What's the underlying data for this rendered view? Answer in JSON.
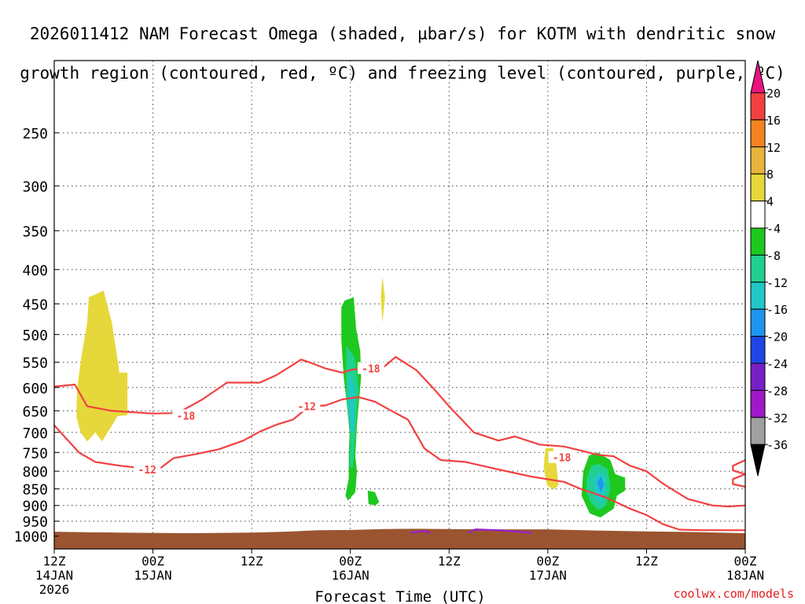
{
  "title_line1": "2026011412 NAM Forecast Omega (shaded, µbar/s) for KOTM with dendritic snow",
  "title_line2": "growth region (contoured, red, ºC) and freezing level (contoured, purple, ºC)",
  "credit": "coolwx.com/models",
  "chart_data": {
    "type": "contour-timeseries",
    "title": "2026011412 NAM Forecast Omega (shaded, µbar/s) for KOTM with dendritic snow growth region (contoured, red, ºC) and freezing level (contoured, purple, ºC)",
    "xlabel": "Forecast Time (UTC)",
    "ylabel": "",
    "x_range_hours": [
      0,
      84
    ],
    "y_range_hpa": [
      195,
      1045
    ],
    "x_ticks": [
      {
        "hour": 0,
        "line1": "12Z",
        "line2": "14JAN",
        "line3": "2026"
      },
      {
        "hour": 12,
        "line1": "00Z",
        "line2": "15JAN",
        "line3": ""
      },
      {
        "hour": 24,
        "line1": "12Z",
        "line2": "",
        "line3": ""
      },
      {
        "hour": 36,
        "line1": "00Z",
        "line2": "16JAN",
        "line3": ""
      },
      {
        "hour": 48,
        "line1": "12Z",
        "line2": "",
        "line3": ""
      },
      {
        "hour": 60,
        "line1": "00Z",
        "line2": "17JAN",
        "line3": ""
      },
      {
        "hour": 72,
        "line1": "12Z",
        "line2": "",
        "line3": ""
      },
      {
        "hour": 84,
        "line1": "00Z",
        "line2": "18JAN",
        "line3": ""
      }
    ],
    "y_ticks": [
      250,
      300,
      350,
      400,
      450,
      500,
      550,
      600,
      650,
      700,
      750,
      800,
      850,
      900,
      950,
      1000
    ],
    "colorbar": {
      "labels": [
        "20",
        "16",
        "12",
        "8",
        "4",
        "-4",
        "-8",
        "-12",
        "-16",
        "-20",
        "-24",
        "-28",
        "-32",
        "-36"
      ],
      "colors": [
        "#e8157f",
        "#f24040",
        "#f58320",
        "#e8b43a",
        "#e6d83a",
        "#ffffff",
        "#1ec81e",
        "#20d090",
        "#20c8c8",
        "#1e96f0",
        "#1e46e6",
        "#7820c8",
        "#a018c8",
        "#a0a0a0",
        "#000000"
      ]
    },
    "contours": [
      {
        "label": "-18",
        "color": "#f24040",
        "points": [
          [
            0,
            598
          ],
          [
            2.5,
            594
          ],
          [
            4,
            640
          ],
          [
            7,
            650
          ],
          [
            12,
            656
          ],
          [
            15,
            655
          ],
          [
            18,
            625
          ],
          [
            21,
            590
          ],
          [
            25,
            590
          ],
          [
            27,
            575
          ],
          [
            29,
            555
          ],
          [
            30,
            545
          ],
          [
            31,
            550
          ],
          [
            33,
            562
          ],
          [
            35,
            570
          ],
          [
            36,
            565
          ],
          [
            38,
            560
          ],
          [
            39,
            570
          ],
          [
            40,
            560
          ],
          [
            41.5,
            540
          ],
          [
            44,
            565
          ],
          [
            46,
            600
          ],
          [
            48,
            640
          ],
          [
            51,
            700
          ],
          [
            54,
            720
          ],
          [
            56,
            710
          ],
          [
            59,
            730
          ],
          [
            62,
            735
          ],
          [
            64,
            745
          ],
          [
            66,
            756
          ],
          [
            68,
            760
          ],
          [
            70,
            785
          ],
          [
            72,
            800
          ],
          [
            74,
            835
          ],
          [
            77,
            880
          ],
          [
            80,
            900
          ],
          [
            82,
            903
          ],
          [
            84,
            900
          ]
        ],
        "labels": [
          {
            "text": "-18",
            "x": 16,
            "y": 661
          },
          {
            "text": "-18",
            "x": 38.5,
            "y": 562
          },
          {
            "text": "-18",
            "x": 61.7,
            "y": 763
          }
        ]
      },
      {
        "label": "-12",
        "color": "#f24040",
        "points": [
          [
            0,
            683
          ],
          [
            1,
            705
          ],
          [
            3,
            750
          ],
          [
            5,
            775
          ],
          [
            8,
            785
          ],
          [
            10,
            790
          ],
          [
            13,
            790
          ],
          [
            14.5,
            765
          ],
          [
            17,
            755
          ],
          [
            20,
            742
          ],
          [
            23,
            720
          ],
          [
            25,
            698
          ],
          [
            27,
            682
          ],
          [
            29,
            670
          ],
          [
            30,
            655
          ],
          [
            31,
            640
          ],
          [
            33,
            638
          ],
          [
            35,
            625
          ],
          [
            37,
            620
          ],
          [
            39,
            630
          ],
          [
            41,
            650
          ],
          [
            43,
            670
          ],
          [
            45,
            740
          ],
          [
            47,
            770
          ],
          [
            50,
            775
          ],
          [
            54,
            795
          ],
          [
            58,
            815
          ],
          [
            62,
            830
          ],
          [
            64,
            850
          ],
          [
            67,
            875
          ],
          [
            70,
            910
          ],
          [
            72,
            930
          ],
          [
            74,
            960
          ],
          [
            76,
            978
          ],
          [
            79,
            980
          ],
          [
            84,
            980
          ]
        ],
        "labels": [
          {
            "text": "-12",
            "x": 11.3,
            "y": 795
          },
          {
            "text": "-12",
            "x": 30.7,
            "y": 640
          }
        ]
      },
      {
        "label": "-12",
        "color": "#f24040",
        "points": [
          [
            84,
            770
          ],
          [
            82.5,
            785
          ],
          [
            82.5,
            798
          ],
          [
            84,
            808
          ],
          [
            82.5,
            822
          ],
          [
            82.5,
            836
          ],
          [
            84,
            844
          ]
        ],
        "labels": []
      },
      {
        "label": "0",
        "color": "#9a1fcc",
        "points": [
          [
            43.3,
            989
          ],
          [
            44.2,
            985
          ],
          [
            45,
            983
          ],
          [
            45.7,
            989
          ]
        ],
        "labels": []
      },
      {
        "label": "0",
        "color": "#9a1fcc",
        "points": [
          [
            50.3,
            989
          ],
          [
            51.2,
            977
          ],
          [
            54,
            980
          ],
          [
            56.5,
            985
          ],
          [
            58,
            989
          ]
        ],
        "labels": []
      }
    ],
    "omega_regions": [
      {
        "name": "positive-4-8-early",
        "value_range": "4 to 8",
        "color": "#e6d83a",
        "points": [
          [
            2.7,
            645
          ],
          [
            2.8,
            600
          ],
          [
            3.3,
            540
          ],
          [
            4,
            480
          ],
          [
            4.2,
            440
          ],
          [
            6,
            430
          ],
          [
            7,
            480
          ],
          [
            7.8,
            555
          ],
          [
            7.9,
            570
          ],
          [
            8.9,
            570
          ],
          [
            8.9,
            660
          ],
          [
            7.7,
            662
          ],
          [
            6.5,
            700
          ],
          [
            5.8,
            722
          ],
          [
            5,
            700
          ],
          [
            4,
            722
          ],
          [
            3.2,
            700
          ],
          [
            2.7,
            665
          ]
        ]
      },
      {
        "name": "positive-4-8-sliver",
        "value_range": "4 to 8",
        "color": "#e6d83a",
        "points": [
          [
            39.9,
            410
          ],
          [
            40.2,
            440
          ],
          [
            39.9,
            480
          ],
          [
            39.7,
            440
          ]
        ]
      },
      {
        "name": "positive-4-8-late",
        "value_range": "4 to 8",
        "color": "#e6d83a",
        "points": [
          [
            59.7,
            740
          ],
          [
            60.6,
            738
          ],
          [
            61,
            775
          ],
          [
            61.3,
            840
          ],
          [
            60.7,
            852
          ],
          [
            59.9,
            840
          ],
          [
            59.5,
            790
          ]
        ]
      },
      {
        "name": "negative-4-8-band",
        "value_range": "-4 to -8",
        "color": "#1ec81e",
        "points": [
          [
            34.9,
            455
          ],
          [
            35.3,
            445
          ],
          [
            36.4,
            440
          ],
          [
            36.7,
            490
          ],
          [
            37.2,
            530
          ],
          [
            37.3,
            580
          ],
          [
            36.8,
            680
          ],
          [
            36.6,
            760
          ],
          [
            36.8,
            800
          ],
          [
            36.6,
            860
          ],
          [
            35.7,
            885
          ],
          [
            35.4,
            870
          ],
          [
            35.8,
            820
          ],
          [
            35.8,
            760
          ],
          [
            35.9,
            700
          ],
          [
            35.6,
            640
          ],
          [
            35.2,
            580
          ],
          [
            34.9,
            510
          ]
        ]
      },
      {
        "name": "negative-4-8-blob",
        "value_range": "-4 to -8",
        "color": "#1ec81e",
        "points": [
          [
            38.1,
            855
          ],
          [
            39,
            860
          ],
          [
            39.5,
            890
          ],
          [
            39,
            900
          ],
          [
            38.2,
            895
          ]
        ]
      },
      {
        "name": "negative-8-12-band",
        "value_range": "-8 to -12",
        "color": "#20d090",
        "points": [
          [
            35.5,
            520
          ],
          [
            36.5,
            540
          ],
          [
            37,
            600
          ],
          [
            36.6,
            700
          ],
          [
            36.3,
            790
          ],
          [
            35.9,
            790
          ],
          [
            36,
            700
          ],
          [
            35.5,
            620
          ]
        ]
      },
      {
        "name": "negative-12-16-band",
        "value_range": "-12 to -16",
        "color": "#20c8c8",
        "points": [
          [
            35.8,
            570
          ],
          [
            36.5,
            600
          ],
          [
            36.4,
            700
          ],
          [
            36,
            700
          ],
          [
            35.8,
            640
          ]
        ]
      },
      {
        "name": "negative-4-8-late",
        "value_range": "-4 to -8",
        "color": "#1ec81e",
        "points": [
          [
            64.3,
            800
          ],
          [
            65,
            758
          ],
          [
            66.1,
            750
          ],
          [
            67.6,
            770
          ],
          [
            68.2,
            808
          ],
          [
            69.4,
            818
          ],
          [
            69.4,
            855
          ],
          [
            68.4,
            870
          ],
          [
            68,
            910
          ],
          [
            66.4,
            938
          ],
          [
            65.1,
            925
          ],
          [
            64.1,
            870
          ]
        ]
      },
      {
        "name": "negative-8-12-late",
        "value_range": "-8 to -12",
        "color": "#20d090",
        "points": [
          [
            64.7,
            820
          ],
          [
            65.3,
            785
          ],
          [
            66.2,
            780
          ],
          [
            67.3,
            795
          ],
          [
            67.6,
            850
          ],
          [
            67.1,
            900
          ],
          [
            66.1,
            915
          ],
          [
            65.2,
            890
          ],
          [
            64.7,
            860
          ]
        ]
      },
      {
        "name": "negative-12-16-late",
        "value_range": "-12 to -16",
        "color": "#20c8c8",
        "points": [
          [
            65.5,
            825
          ],
          [
            66.3,
            800
          ],
          [
            67,
            815
          ],
          [
            67.1,
            860
          ],
          [
            66.4,
            895
          ],
          [
            65.7,
            870
          ]
        ]
      },
      {
        "name": "negative-16-20-late",
        "value_range": "-16 to -20",
        "color": "#1e96f0",
        "points": [
          [
            66,
            830
          ],
          [
            66.5,
            815
          ],
          [
            66.8,
            840
          ],
          [
            66.4,
            860
          ]
        ]
      }
    ],
    "terrain": {
      "name": "surface-ground",
      "color": "#9a5530",
      "top_points": [
        [
          0,
          985
        ],
        [
          8,
          988
        ],
        [
          16,
          990
        ],
        [
          24,
          988
        ],
        [
          28,
          985
        ],
        [
          32,
          980
        ],
        [
          36,
          979
        ],
        [
          40,
          976
        ],
        [
          44,
          975
        ],
        [
          48,
          976
        ],
        [
          54,
          977
        ],
        [
          60,
          977
        ],
        [
          66,
          981
        ],
        [
          72,
          984
        ],
        [
          78,
          986
        ],
        [
          84,
          990
        ]
      ]
    }
  }
}
